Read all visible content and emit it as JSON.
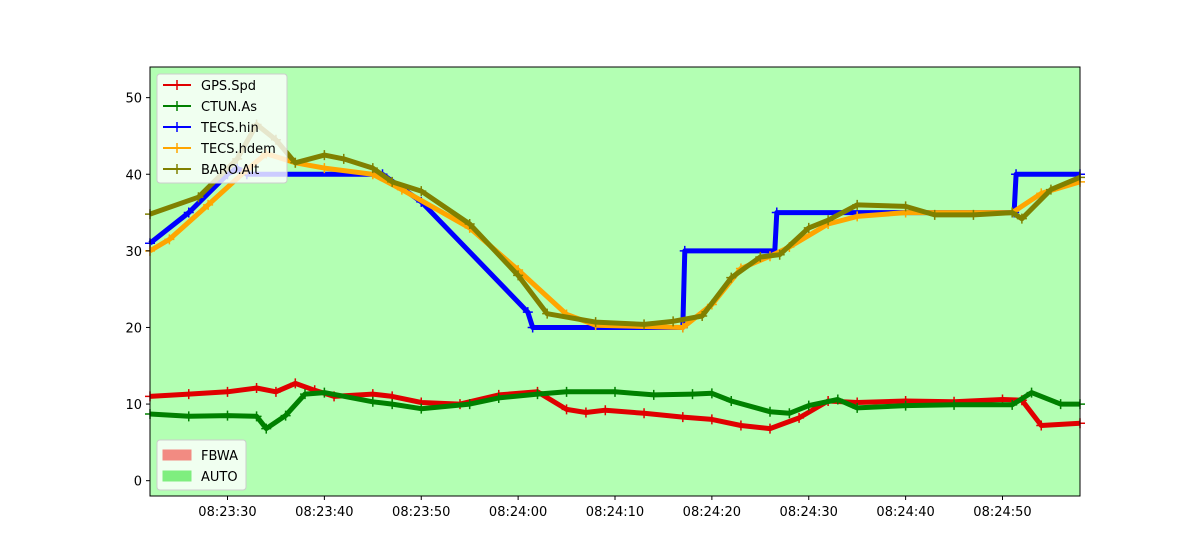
{
  "chart_data": {
    "type": "line",
    "ylim": [
      -2,
      54
    ],
    "xlim": [
      "08:23:22",
      "08:24:58"
    ],
    "yticks": [
      0,
      10,
      20,
      30,
      40,
      50
    ],
    "xticks": [
      "08:23:30",
      "08:23:40",
      "08:23:50",
      "08:24:00",
      "08:24:10",
      "08:24:20",
      "08:24:30",
      "08:24:40",
      "08:24:50"
    ],
    "grid": false,
    "background_color": "#b3ffb3",
    "series": [
      {
        "name": "GPS.Spd",
        "color": "#e00000",
        "marker": "+",
        "points": [
          [
            "08:23:22",
            11.0
          ],
          [
            "08:23:26",
            11.3
          ],
          [
            "08:23:30",
            11.6
          ],
          [
            "08:23:33",
            12.1
          ],
          [
            "08:23:35",
            11.6
          ],
          [
            "08:23:37",
            12.7
          ],
          [
            "08:23:39",
            11.8
          ],
          [
            "08:23:41",
            11.0
          ],
          [
            "08:23:45",
            11.3
          ],
          [
            "08:23:47",
            11.0
          ],
          [
            "08:23:50",
            10.2
          ],
          [
            "08:23:54",
            10.0
          ],
          [
            "08:23:58",
            11.2
          ],
          [
            "08:24:02",
            11.6
          ],
          [
            "08:24:05",
            9.3
          ],
          [
            "08:24:07",
            8.9
          ],
          [
            "08:24:09",
            9.2
          ],
          [
            "08:24:13",
            8.8
          ],
          [
            "08:24:17",
            8.3
          ],
          [
            "08:24:20",
            8.0
          ],
          [
            "08:24:23",
            7.2
          ],
          [
            "08:24:26",
            6.8
          ],
          [
            "08:24:29",
            8.2
          ],
          [
            "08:24:32",
            10.4
          ],
          [
            "08:24:35",
            10.2
          ],
          [
            "08:24:40",
            10.4
          ],
          [
            "08:24:45",
            10.3
          ],
          [
            "08:24:50",
            10.6
          ],
          [
            "08:24:52",
            10.5
          ],
          [
            "08:24:54",
            7.2
          ],
          [
            "08:24:58",
            7.5
          ]
        ]
      },
      {
        "name": "CTUN.As",
        "color": "#008000",
        "marker": "+",
        "points": [
          [
            "08:23:22",
            8.7
          ],
          [
            "08:23:26",
            8.4
          ],
          [
            "08:23:30",
            8.5
          ],
          [
            "08:23:33",
            8.4
          ],
          [
            "08:23:34",
            6.8
          ],
          [
            "08:23:36",
            8.5
          ],
          [
            "08:23:38",
            11.3
          ],
          [
            "08:23:40",
            11.5
          ],
          [
            "08:23:45",
            10.3
          ],
          [
            "08:23:47",
            10.0
          ],
          [
            "08:23:50",
            9.4
          ],
          [
            "08:23:55",
            10.0
          ],
          [
            "08:23:58",
            10.8
          ],
          [
            "08:24:02",
            11.3
          ],
          [
            "08:24:05",
            11.6
          ],
          [
            "08:24:10",
            11.6
          ],
          [
            "08:24:14",
            11.2
          ],
          [
            "08:24:18",
            11.3
          ],
          [
            "08:24:20",
            11.4
          ],
          [
            "08:24:22",
            10.4
          ],
          [
            "08:24:26",
            9.0
          ],
          [
            "08:24:28",
            8.8
          ],
          [
            "08:24:30",
            9.8
          ],
          [
            "08:24:33",
            10.6
          ],
          [
            "08:24:35",
            9.5
          ],
          [
            "08:24:40",
            9.8
          ],
          [
            "08:24:45",
            9.9
          ],
          [
            "08:24:51",
            9.9
          ],
          [
            "08:24:53",
            11.5
          ],
          [
            "08:24:56",
            10.0
          ],
          [
            "08:24:58",
            10.0
          ]
        ]
      },
      {
        "name": "TECS.hin",
        "color": "#0000ff",
        "marker": "+",
        "points": [
          [
            "08:23:22",
            31.0
          ],
          [
            "08:23:26",
            35.0
          ],
          [
            "08:23:30",
            40.0
          ],
          [
            "08:23:31",
            40.8
          ],
          [
            "08:23:32",
            40.0
          ],
          [
            "08:23:46",
            40.0
          ],
          [
            "08:23:50",
            36.4
          ],
          [
            "08:24:01",
            22.0
          ],
          [
            "08:24:01.5",
            20.0
          ],
          [
            "08:24:17",
            20.0
          ],
          [
            "08:24:17.2",
            30.0
          ],
          [
            "08:24:26.5",
            30.0
          ],
          [
            "08:24:26.7",
            35.0
          ],
          [
            "08:24:51.2",
            35.0
          ],
          [
            "08:24:51.4",
            40.0
          ],
          [
            "08:24:58",
            40.0
          ]
        ]
      },
      {
        "name": "TECS.hdem",
        "color": "#ffa500",
        "marker": "+",
        "points": [
          [
            "08:23:22",
            30.0
          ],
          [
            "08:23:24",
            31.5
          ],
          [
            "08:23:28",
            36.0
          ],
          [
            "08:23:32",
            40.6
          ],
          [
            "08:23:34",
            42.7
          ],
          [
            "08:23:37",
            41.5
          ],
          [
            "08:23:40",
            40.8
          ],
          [
            "08:23:45",
            40.0
          ],
          [
            "08:23:48",
            38.0
          ],
          [
            "08:23:55",
            33.0
          ],
          [
            "08:24:00",
            27.5
          ],
          [
            "08:24:05",
            21.7
          ],
          [
            "08:24:08",
            20.3
          ],
          [
            "08:24:17",
            20.0
          ],
          [
            "08:24:20",
            23.0
          ],
          [
            "08:24:23",
            27.7
          ],
          [
            "08:24:26",
            29.3
          ],
          [
            "08:24:28",
            30.5
          ],
          [
            "08:24:32",
            33.5
          ],
          [
            "08:24:35",
            34.5
          ],
          [
            "08:24:40",
            35.0
          ],
          [
            "08:24:51",
            35.0
          ],
          [
            "08:24:54",
            37.5
          ],
          [
            "08:24:58",
            39.0
          ]
        ]
      },
      {
        "name": "BARO.Alt",
        "color": "#808000",
        "marker": "+",
        "points": [
          [
            "08:23:22",
            34.8
          ],
          [
            "08:23:27",
            37.0
          ],
          [
            "08:23:31",
            42.0
          ],
          [
            "08:23:33",
            46.5
          ],
          [
            "08:23:35",
            44.5
          ],
          [
            "08:23:37",
            41.5
          ],
          [
            "08:23:40",
            42.5
          ],
          [
            "08:23:42",
            42.0
          ],
          [
            "08:23:45",
            40.8
          ],
          [
            "08:23:47",
            39.0
          ],
          [
            "08:23:50",
            37.8
          ],
          [
            "08:23:55",
            33.5
          ],
          [
            "08:24:00",
            26.8
          ],
          [
            "08:24:03",
            21.8
          ],
          [
            "08:24:08",
            20.7
          ],
          [
            "08:24:13",
            20.4
          ],
          [
            "08:24:16",
            20.8
          ],
          [
            "08:24:19",
            21.5
          ],
          [
            "08:24:22",
            26.5
          ],
          [
            "08:24:25",
            29.2
          ],
          [
            "08:24:27",
            29.5
          ],
          [
            "08:24:30",
            33.0
          ],
          [
            "08:24:32",
            34.0
          ],
          [
            "08:24:35",
            36.0
          ],
          [
            "08:24:40",
            35.8
          ],
          [
            "08:24:43",
            34.7
          ],
          [
            "08:24:47",
            34.7
          ],
          [
            "08:24:51",
            35.0
          ],
          [
            "08:24:52",
            34.2
          ],
          [
            "08:24:55",
            38.0
          ],
          [
            "08:24:58",
            39.6
          ]
        ]
      }
    ],
    "mode_legend": [
      {
        "name": "FBWA",
        "color": "#f28b82"
      },
      {
        "name": "AUTO",
        "color": "#7fee7f"
      }
    ]
  }
}
